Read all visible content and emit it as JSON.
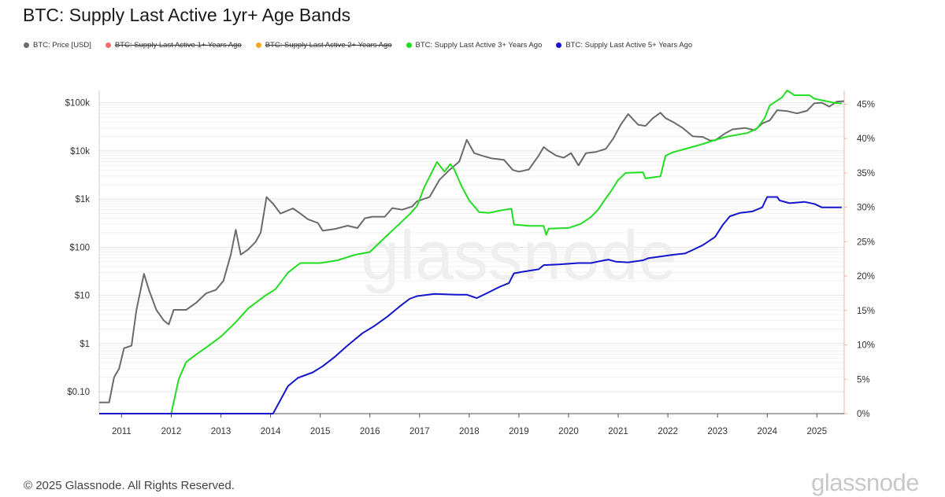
{
  "title": "BTC: Supply Last Active 1yr+ Age Bands",
  "legend": [
    {
      "label": "BTC: Price [USD]",
      "color": "#6b6b6b",
      "disabled": false
    },
    {
      "label": "BTC: Supply Last Active 1+ Years Ago",
      "color": "#f06d6d",
      "disabled": true
    },
    {
      "label": "BTC: Supply Last Active 2+ Years Ago",
      "color": "#f5a623",
      "disabled": true
    },
    {
      "label": "BTC: Supply Last Active 3+ Years Ago",
      "color": "#22dd22",
      "disabled": false
    },
    {
      "label": "BTC: Supply Last Active 5+ Years Ago",
      "color": "#1515cc",
      "disabled": false
    }
  ],
  "watermark": "glassnode",
  "footer": "© 2025 Glassnode. All Rights Reserved.",
  "brand": "glassnode",
  "chart_data": {
    "type": "line",
    "x_axis": {
      "ticks": [
        "2011",
        "2012",
        "2013",
        "2014",
        "2015",
        "2016",
        "2017",
        "2018",
        "2019",
        "2020",
        "2021",
        "2022",
        "2023",
        "2024",
        "2025"
      ],
      "range": [
        2010.55,
        2025.55
      ]
    },
    "y_left": {
      "scale": "log",
      "ticks": [
        {
          "value": 0.1,
          "label": "$0.10"
        },
        {
          "value": 1,
          "label": "$1"
        },
        {
          "value": 10,
          "label": "$10"
        },
        {
          "value": 100,
          "label": "$100"
        },
        {
          "value": 1000,
          "label": "$1k"
        },
        {
          "value": 10000,
          "label": "$10k"
        },
        {
          "value": 100000,
          "label": "$100k"
        }
      ],
      "range": [
        0.035,
        180000
      ]
    },
    "y_right": {
      "scale": "linear",
      "ticks": [
        {
          "value": 0,
          "label": "0%"
        },
        {
          "value": 5,
          "label": "5%"
        },
        {
          "value": 10,
          "label": "10%"
        },
        {
          "value": 15,
          "label": "15%"
        },
        {
          "value": 20,
          "label": "20%"
        },
        {
          "value": 25,
          "label": "25%"
        },
        {
          "value": 30,
          "label": "30%"
        },
        {
          "value": 35,
          "label": "35%"
        },
        {
          "value": 40,
          "label": "40%"
        },
        {
          "value": 45,
          "label": "45%"
        }
      ],
      "range": [
        0,
        47
      ]
    },
    "grid": true,
    "series": [
      {
        "name": "BTC: Price [USD]",
        "axis": "left",
        "color": "#6b6b6b",
        "points": [
          [
            2010.55,
            0.06
          ],
          [
            2010.75,
            0.06
          ],
          [
            2010.85,
            0.2
          ],
          [
            2010.95,
            0.3
          ],
          [
            2011.05,
            0.8
          ],
          [
            2011.2,
            0.9
          ],
          [
            2011.3,
            5
          ],
          [
            2011.45,
            28
          ],
          [
            2011.55,
            13
          ],
          [
            2011.7,
            5
          ],
          [
            2011.85,
            3
          ],
          [
            2011.95,
            2.5
          ],
          [
            2012.05,
            5
          ],
          [
            2012.3,
            5
          ],
          [
            2012.5,
            7
          ],
          [
            2012.7,
            11
          ],
          [
            2012.9,
            13
          ],
          [
            2013.05,
            20
          ],
          [
            2013.2,
            70
          ],
          [
            2013.3,
            230
          ],
          [
            2013.4,
            70
          ],
          [
            2013.55,
            90
          ],
          [
            2013.7,
            130
          ],
          [
            2013.8,
            200
          ],
          [
            2013.92,
            1100
          ],
          [
            2014.05,
            800
          ],
          [
            2014.2,
            500
          ],
          [
            2014.45,
            640
          ],
          [
            2014.6,
            500
          ],
          [
            2014.75,
            380
          ],
          [
            2014.95,
            320
          ],
          [
            2015.05,
            220
          ],
          [
            2015.3,
            240
          ],
          [
            2015.55,
            280
          ],
          [
            2015.75,
            250
          ],
          [
            2015.9,
            400
          ],
          [
            2016.05,
            430
          ],
          [
            2016.3,
            430
          ],
          [
            2016.45,
            650
          ],
          [
            2016.65,
            600
          ],
          [
            2016.85,
            700
          ],
          [
            2016.95,
            900
          ],
          [
            2017.2,
            1100
          ],
          [
            2017.4,
            2500
          ],
          [
            2017.6,
            4000
          ],
          [
            2017.8,
            6000
          ],
          [
            2017.95,
            17000
          ],
          [
            2018.1,
            9000
          ],
          [
            2018.25,
            8000
          ],
          [
            2018.45,
            7000
          ],
          [
            2018.7,
            6500
          ],
          [
            2018.88,
            4000
          ],
          [
            2019.0,
            3700
          ],
          [
            2019.2,
            4100
          ],
          [
            2019.4,
            8000
          ],
          [
            2019.5,
            12000
          ],
          [
            2019.6,
            10000
          ],
          [
            2019.75,
            8000
          ],
          [
            2019.9,
            7200
          ],
          [
            2020.05,
            9000
          ],
          [
            2020.2,
            5000
          ],
          [
            2020.35,
            9000
          ],
          [
            2020.55,
            9500
          ],
          [
            2020.75,
            11000
          ],
          [
            2020.9,
            18000
          ],
          [
            2021.05,
            35000
          ],
          [
            2021.2,
            58000
          ],
          [
            2021.4,
            35000
          ],
          [
            2021.55,
            33000
          ],
          [
            2021.7,
            48000
          ],
          [
            2021.85,
            62000
          ],
          [
            2021.95,
            48000
          ],
          [
            2022.1,
            40000
          ],
          [
            2022.3,
            30000
          ],
          [
            2022.5,
            20000
          ],
          [
            2022.7,
            19500
          ],
          [
            2022.85,
            16500
          ],
          [
            2022.95,
            16500
          ],
          [
            2023.15,
            23000
          ],
          [
            2023.3,
            28000
          ],
          [
            2023.55,
            30000
          ],
          [
            2023.75,
            27000
          ],
          [
            2023.9,
            37000
          ],
          [
            2024.05,
            43000
          ],
          [
            2024.2,
            70000
          ],
          [
            2024.4,
            67000
          ],
          [
            2024.6,
            60000
          ],
          [
            2024.8,
            68000
          ],
          [
            2024.95,
            98000
          ],
          [
            2025.1,
            100000
          ],
          [
            2025.25,
            83000
          ],
          [
            2025.4,
            105000
          ],
          [
            2025.55,
            108000
          ]
        ]
      },
      {
        "name": "BTC: Supply Last Active 3+ Years Ago",
        "axis": "right",
        "color": "#22dd22",
        "points": [
          [
            2010.55,
            0
          ],
          [
            2012.0,
            0
          ],
          [
            2012.15,
            5
          ],
          [
            2012.3,
            7.5
          ],
          [
            2012.5,
            8.6
          ],
          [
            2012.7,
            9.6
          ],
          [
            2013.0,
            11.2
          ],
          [
            2013.3,
            13.3
          ],
          [
            2013.55,
            15.3
          ],
          [
            2013.9,
            17.2
          ],
          [
            2014.1,
            18.1
          ],
          [
            2014.35,
            20.5
          ],
          [
            2014.6,
            21.9
          ],
          [
            2015.0,
            21.9
          ],
          [
            2015.35,
            22.3
          ],
          [
            2015.7,
            23.1
          ],
          [
            2016.0,
            23.5
          ],
          [
            2016.3,
            25.6
          ],
          [
            2016.55,
            27.3
          ],
          [
            2016.8,
            29.0
          ],
          [
            2016.95,
            30.2
          ],
          [
            2017.1,
            33.0
          ],
          [
            2017.35,
            36.6
          ],
          [
            2017.5,
            35.2
          ],
          [
            2017.62,
            36.3
          ],
          [
            2017.7,
            35.5
          ],
          [
            2017.85,
            33.0
          ],
          [
            2018.0,
            31.0
          ],
          [
            2018.2,
            29.3
          ],
          [
            2018.4,
            29.2
          ],
          [
            2018.6,
            29.5
          ],
          [
            2018.85,
            29.8
          ],
          [
            2018.9,
            27.5
          ],
          [
            2019.2,
            27.3
          ],
          [
            2019.5,
            27.3
          ],
          [
            2019.55,
            26.0
          ],
          [
            2019.6,
            26.9
          ],
          [
            2020.0,
            27.0
          ],
          [
            2020.25,
            27.6
          ],
          [
            2020.45,
            28.6
          ],
          [
            2020.6,
            29.7
          ],
          [
            2020.7,
            30.8
          ],
          [
            2020.85,
            32.3
          ],
          [
            2021.0,
            34.0
          ],
          [
            2021.15,
            35.0
          ],
          [
            2021.5,
            35.1
          ],
          [
            2021.55,
            34.2
          ],
          [
            2021.85,
            34.5
          ],
          [
            2021.95,
            37.5
          ],
          [
            2022.1,
            38.0
          ],
          [
            2022.4,
            38.6
          ],
          [
            2022.7,
            39.2
          ],
          [
            2022.95,
            39.8
          ],
          [
            2023.2,
            40.3
          ],
          [
            2023.6,
            40.8
          ],
          [
            2023.8,
            41.5
          ],
          [
            2023.95,
            43.0
          ],
          [
            2024.05,
            44.8
          ],
          [
            2024.3,
            46.0
          ],
          [
            2024.4,
            47.0
          ],
          [
            2024.55,
            46.3
          ],
          [
            2024.85,
            46.3
          ],
          [
            2024.95,
            45.8
          ],
          [
            2025.15,
            45.5
          ],
          [
            2025.35,
            45.2
          ],
          [
            2025.5,
            45.1
          ]
        ]
      },
      {
        "name": "BTC: Supply Last Active 5+ Years Ago",
        "axis": "right",
        "color": "#1515cc",
        "points": [
          [
            2010.55,
            0
          ],
          [
            2014.05,
            0
          ],
          [
            2014.2,
            2.0
          ],
          [
            2014.35,
            4.0
          ],
          [
            2014.55,
            5.2
          ],
          [
            2014.85,
            6.0
          ],
          [
            2015.05,
            6.9
          ],
          [
            2015.3,
            8.3
          ],
          [
            2015.55,
            9.9
          ],
          [
            2015.85,
            11.7
          ],
          [
            2016.1,
            12.8
          ],
          [
            2016.35,
            14.1
          ],
          [
            2016.6,
            15.6
          ],
          [
            2016.8,
            16.7
          ],
          [
            2016.95,
            17.1
          ],
          [
            2017.3,
            17.4
          ],
          [
            2017.75,
            17.3
          ],
          [
            2017.95,
            17.3
          ],
          [
            2018.15,
            16.8
          ],
          [
            2018.35,
            17.5
          ],
          [
            2018.6,
            18.4
          ],
          [
            2018.8,
            19.0
          ],
          [
            2018.9,
            20.4
          ],
          [
            2019.05,
            20.6
          ],
          [
            2019.4,
            21.0
          ],
          [
            2019.5,
            21.6
          ],
          [
            2019.8,
            21.7
          ],
          [
            2020.2,
            21.9
          ],
          [
            2020.45,
            21.9
          ],
          [
            2020.65,
            22.2
          ],
          [
            2020.8,
            22.4
          ],
          [
            2020.95,
            22.1
          ],
          [
            2021.2,
            22.0
          ],
          [
            2021.5,
            22.3
          ],
          [
            2021.6,
            22.6
          ],
          [
            2021.9,
            22.9
          ],
          [
            2022.1,
            23.1
          ],
          [
            2022.35,
            23.3
          ],
          [
            2022.5,
            23.8
          ],
          [
            2022.7,
            24.5
          ],
          [
            2022.95,
            25.7
          ],
          [
            2023.1,
            27.4
          ],
          [
            2023.25,
            28.7
          ],
          [
            2023.45,
            29.2
          ],
          [
            2023.7,
            29.4
          ],
          [
            2023.9,
            30.0
          ],
          [
            2024.0,
            31.5
          ],
          [
            2024.2,
            31.5
          ],
          [
            2024.25,
            31.0
          ],
          [
            2024.45,
            30.6
          ],
          [
            2024.75,
            30.8
          ],
          [
            2024.95,
            30.5
          ],
          [
            2025.1,
            30.0
          ],
          [
            2025.5,
            30.0
          ]
        ]
      }
    ]
  }
}
